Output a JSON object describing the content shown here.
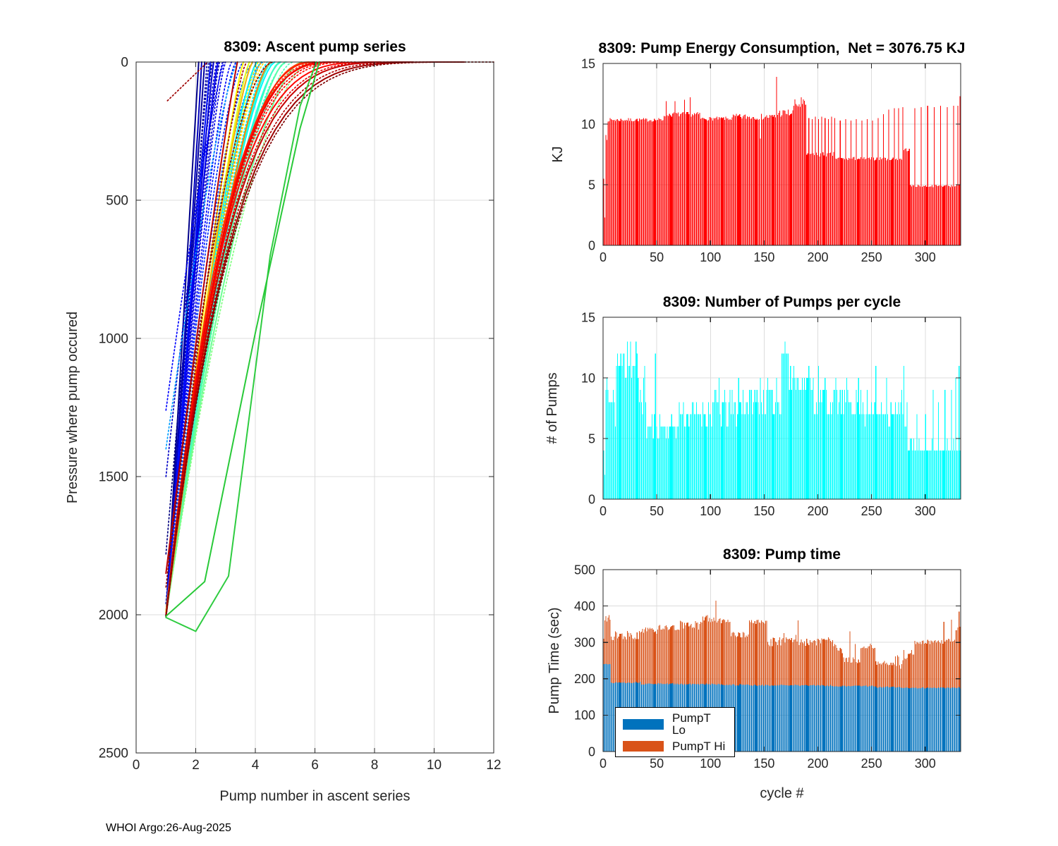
{
  "footer": {
    "text": "WHOI Argo:26-Aug-2025"
  },
  "colors": {
    "energy_bar": "#ff0000",
    "pumps_bar": "#00ffff",
    "pump_lo": "#0072BD",
    "pump_hi": "#D95319",
    "axis": "#262626",
    "grid": "#dcdcdc",
    "title": "#000000"
  },
  "chart_data": [
    {
      "id": "ascent_pump_series",
      "type": "line",
      "title": "8309: Ascent pump series",
      "xlabel": "Pump number in ascent series",
      "ylabel": "Pressure where pump occured",
      "xlim": [
        0,
        12
      ],
      "ylim": [
        0,
        2500
      ],
      "y_reversed": true,
      "xticks": [
        0,
        2,
        4,
        6,
        8,
        10,
        12
      ],
      "yticks": [
        0,
        500,
        1000,
        1500,
        2000,
        2500
      ],
      "grid": true,
      "colormap": "jet",
      "lines_format": "[jet_fraction, dotted01, x_start, pressure_start_dbar, x_at_surface, curvature_gamma]",
      "lines": [
        [
          0.0,
          1,
          1,
          1780,
          2.55,
          1.1
        ],
        [
          0.01,
          0,
          1,
          2005,
          2.1,
          1.0
        ],
        [
          0.02,
          1,
          1,
          2005,
          2.45,
          1.1
        ],
        [
          0.03,
          0,
          1,
          2005,
          2.3,
          1.0
        ],
        [
          0.04,
          1,
          1,
          1960,
          2.8,
          1.2
        ],
        [
          0.05,
          1,
          1,
          2005,
          2.38,
          1.0
        ],
        [
          0.06,
          0,
          1,
          2005,
          2.2,
          0.95
        ],
        [
          0.07,
          1,
          1,
          1500,
          2.7,
          1.1
        ],
        [
          0.08,
          0,
          1,
          2005,
          2.6,
          1.1
        ],
        [
          0.09,
          1,
          1,
          2010,
          2.9,
          1.25
        ],
        [
          0.1,
          1,
          1,
          2005,
          3.0,
          1.3
        ],
        [
          0.11,
          0,
          1,
          2005,
          2.75,
          1.2
        ],
        [
          0.12,
          1,
          1,
          1990,
          3.2,
          1.35
        ],
        [
          0.13,
          1,
          1,
          1260,
          2.95,
          1.2
        ],
        [
          0.14,
          0,
          1,
          2005,
          2.5,
          1.05
        ],
        [
          0.15,
          1,
          1,
          2005,
          3.35,
          1.4
        ],
        [
          0.17,
          1,
          1,
          2005,
          3.6,
          1.5
        ],
        [
          0.2,
          1,
          1,
          2005,
          3.95,
          1.6
        ],
        [
          0.24,
          1,
          1,
          2005,
          4.25,
          1.65
        ],
        [
          0.28,
          1,
          1,
          1400,
          3.4,
          1.3
        ],
        [
          0.32,
          0,
          1,
          2005,
          3.9,
          1.3
        ],
        [
          0.34,
          0,
          1,
          2005,
          4.2,
          1.4
        ],
        [
          0.35,
          1,
          1,
          2005,
          4.5,
          1.5
        ],
        [
          0.36,
          0,
          1,
          2005,
          4.05,
          1.35
        ],
        [
          0.37,
          0,
          1,
          2005,
          4.65,
          1.5
        ],
        [
          0.38,
          1,
          1,
          2005,
          4.4,
          1.4
        ],
        [
          0.4,
          0,
          1,
          2005,
          4.85,
          1.55
        ],
        [
          0.41,
          1,
          1,
          2005,
          5.05,
          1.6
        ],
        [
          0.42,
          0,
          1,
          2005,
          4.55,
          1.45
        ],
        [
          0.44,
          0,
          1,
          2005,
          4.8,
          1.45
        ],
        [
          0.45,
          1,
          1,
          2005,
          5.25,
          1.6
        ],
        [
          0.46,
          0,
          1,
          2005,
          5.0,
          1.5
        ],
        [
          0.48,
          0,
          1,
          2005,
          5.55,
          1.65
        ],
        [
          0.5,
          1,
          1,
          2005,
          5.85,
          1.7
        ],
        [
          0.6,
          0,
          1,
          2005,
          3.8,
          1.25
        ],
        [
          0.62,
          1,
          1,
          2005,
          4.1,
          1.35
        ],
        [
          0.63,
          0,
          1,
          1990,
          3.6,
          1.2
        ],
        [
          0.65,
          1,
          1,
          2005,
          4.3,
          1.4
        ],
        [
          0.7,
          0,
          1,
          2005,
          3.9,
          1.3
        ],
        [
          0.72,
          1,
          1,
          2005,
          4.2,
          1.35
        ],
        [
          0.75,
          0,
          1,
          2005,
          4.5,
          1.45
        ],
        [
          0.8,
          0,
          1,
          2005,
          5.8,
          2.2
        ],
        [
          0.82,
          1,
          1,
          2005,
          6.3,
          2.6
        ],
        [
          0.84,
          0,
          1,
          2005,
          6.8,
          3.0
        ],
        [
          0.85,
          0,
          1,
          2005,
          6.0,
          2.4
        ],
        [
          0.86,
          1,
          1,
          2005,
          7.4,
          3.2
        ],
        [
          0.87,
          0,
          1,
          2005,
          8.2,
          3.6
        ],
        [
          0.88,
          1,
          1,
          2005,
          7.0,
          3.0
        ],
        [
          0.89,
          0,
          1,
          2005,
          6.5,
          2.7
        ],
        [
          0.9,
          1,
          1,
          2005,
          8.8,
          3.8
        ],
        [
          0.93,
          0,
          1,
          2005,
          9.3,
          4.0
        ],
        [
          0.94,
          0,
          1,
          1850,
          3.4,
          1.1
        ],
        [
          0.95,
          1,
          1,
          2005,
          10.2,
          4.3
        ],
        [
          0.96,
          1,
          1,
          2005,
          3.7,
          1.3
        ],
        [
          0.97,
          1,
          1.05,
          140,
          2.4,
          1.0
        ],
        [
          0.97,
          0,
          1,
          2005,
          11.0,
          4.6
        ],
        [
          0.99,
          1,
          1,
          1900,
          4.6,
          1.8
        ],
        [
          1.0,
          1,
          1,
          2005,
          12.0,
          5.0
        ]
      ],
      "extra_lines": [
        {
          "color": "#2ecc40",
          "dotted": 0,
          "pts": [
            [
              1,
              2010
            ],
            [
              2,
              2060
            ],
            [
              3.1,
              1860
            ],
            [
              4.5,
              700
            ],
            [
              5.5,
              160
            ],
            [
              6.05,
              0
            ]
          ]
        },
        {
          "color": "#28c938",
          "dotted": 0,
          "pts": [
            [
              1,
              2005
            ],
            [
              2.3,
              1880
            ],
            [
              4.0,
              980
            ],
            [
              5.5,
              240
            ],
            [
              6.15,
              0
            ]
          ]
        }
      ]
    },
    {
      "id": "pump_energy",
      "type": "bar",
      "title": "8309: Pump Energy Consumption,  Net = 3076.75 KJ",
      "net_kj": 3076.75,
      "ylabel": "KJ",
      "xlim": [
        0,
        333
      ],
      "ylim": [
        0,
        15
      ],
      "xticks": [
        0,
        50,
        100,
        150,
        200,
        250,
        300
      ],
      "yticks": [
        0,
        5,
        10,
        15
      ],
      "grid": true,
      "n_cycles": 331,
      "bar_color_key": "energy_bar",
      "head": [
        5.5,
        2.3,
        9.1,
        8.7
      ],
      "segments_format": "[from_cycle, to_cycle, base_KJ, jitter]",
      "segments": [
        [
          4,
          56,
          10.35,
          0.15
        ],
        [
          56,
          90,
          10.8,
          0.2
        ],
        [
          90,
          120,
          10.45,
          0.15
        ],
        [
          120,
          160,
          10.6,
          0.25
        ],
        [
          160,
          176,
          10.9,
          0.35
        ],
        [
          176,
          188,
          11.6,
          0.45
        ],
        [
          188,
          215,
          7.5,
          0.2
        ],
        [
          215,
          278,
          7.15,
          0.15
        ],
        [
          278,
          284,
          7.9,
          0.15
        ],
        [
          284,
          331,
          4.9,
          0.1
        ]
      ],
      "spikes": [
        [
          58,
          11.9
        ],
        [
          66,
          11.9
        ],
        [
          75,
          12.0
        ],
        [
          80,
          12.2
        ],
        [
          145,
          8.8
        ],
        [
          160,
          13.9
        ],
        [
          183,
          12.2
        ],
        [
          190,
          10.5
        ],
        [
          193,
          10.4
        ],
        [
          196,
          10.6
        ],
        [
          199,
          10.4
        ],
        [
          202,
          10.6
        ],
        [
          205,
          10.5
        ],
        [
          208,
          10.4
        ],
        [
          211,
          10.6
        ],
        [
          214,
          10.5
        ],
        [
          219,
          10.3
        ],
        [
          224,
          10.4
        ],
        [
          229,
          10.3
        ],
        [
          234,
          10.4
        ],
        [
          239,
          10.3
        ],
        [
          244,
          10.4
        ],
        [
          249,
          10.3
        ],
        [
          254,
          10.5
        ],
        [
          259,
          10.8
        ],
        [
          264,
          11.2
        ],
        [
          269,
          11.3
        ],
        [
          273,
          11.3
        ],
        [
          277,
          11.4
        ],
        [
          288,
          11.3
        ],
        [
          294,
          11.4
        ],
        [
          300,
          11.5
        ],
        [
          306,
          11.4
        ],
        [
          312,
          11.5
        ],
        [
          318,
          11.4
        ],
        [
          324,
          11.5
        ],
        [
          328,
          11.5
        ],
        [
          330,
          12.3
        ]
      ]
    },
    {
      "id": "pumps_per_cycle",
      "type": "bar",
      "title": "8309: Number of Pumps per cycle",
      "ylabel": "# of Pumps",
      "xlim": [
        0,
        333
      ],
      "ylim": [
        0,
        15
      ],
      "xticks": [
        0,
        50,
        100,
        150,
        200,
        250,
        300
      ],
      "yticks": [
        0,
        5,
        10,
        15
      ],
      "grid": true,
      "n_cycles": 331,
      "integer": true,
      "bar_color_key": "pumps_bar",
      "head": [
        4,
        2,
        9,
        10,
        9
      ],
      "segments_format": "[from_cycle, to_cycle, base_count, jitter]",
      "segments": [
        [
          5,
          12,
          8,
          2
        ],
        [
          12,
          32,
          11,
          2
        ],
        [
          32,
          40,
          9,
          2
        ],
        [
          40,
          70,
          6,
          0.8
        ],
        [
          70,
          100,
          7,
          1.2
        ],
        [
          100,
          125,
          7.5,
          1.5
        ],
        [
          125,
          165,
          8,
          1.5
        ],
        [
          165,
          172,
          12,
          1
        ],
        [
          172,
          195,
          9.7,
          1
        ],
        [
          195,
          220,
          8,
          1.5
        ],
        [
          220,
          240,
          7.8,
          1
        ],
        [
          240,
          275,
          7.2,
          0.9
        ],
        [
          275,
          282,
          7.5,
          1.5
        ],
        [
          282,
          331,
          4.2,
          0.45
        ]
      ],
      "spikes": [
        [
          13,
          12
        ],
        [
          22,
          13
        ],
        [
          25,
          13
        ],
        [
          30,
          13
        ],
        [
          48,
          12
        ],
        [
          107,
          10
        ],
        [
          125,
          10
        ],
        [
          137,
          9
        ],
        [
          145,
          10
        ],
        [
          152,
          10
        ],
        [
          160,
          10
        ],
        [
          168,
          13
        ],
        [
          170,
          12
        ],
        [
          176,
          11
        ],
        [
          186,
          10
        ],
        [
          190,
          11
        ],
        [
          199,
          11
        ],
        [
          205,
          10
        ],
        [
          215,
          10
        ],
        [
          225,
          10
        ],
        [
          236,
          10
        ],
        [
          244,
          9
        ],
        [
          252,
          11
        ],
        [
          262,
          10
        ],
        [
          278,
          11
        ],
        [
          290,
          7
        ],
        [
          298,
          7
        ],
        [
          305,
          9
        ],
        [
          310,
          8
        ],
        [
          316,
          9
        ],
        [
          322,
          9
        ],
        [
          326,
          10
        ],
        [
          329,
          11
        ]
      ]
    },
    {
      "id": "pump_time",
      "type": "stacked_bar",
      "title": "8309: Pump time",
      "xlabel": "cycle #",
      "ylabel": "Pump Time (sec)",
      "xlim": [
        0,
        333
      ],
      "ylim": [
        0,
        500
      ],
      "xticks": [
        0,
        50,
        100,
        150,
        200,
        250,
        300
      ],
      "yticks": [
        0,
        100,
        200,
        300,
        400,
        500
      ],
      "grid": true,
      "n_cycles": 331,
      "series": [
        {
          "name": "PumpT Lo",
          "color_key": "pump_lo"
        },
        {
          "name": "PumpT Hi",
          "color_key": "pump_hi"
        }
      ],
      "head_pairs": [
        [
          240,
          310
        ],
        [
          240,
          360
        ],
        [
          241,
          372
        ],
        [
          240,
          358
        ],
        [
          239,
          368
        ],
        [
          240,
          375
        ],
        [
          240,
          362
        ]
      ],
      "segments_format": "[from_cycle, to_cycle, lo_sec, total_sec, jitter]",
      "segments": [
        [
          7,
          35,
          190,
          320,
          14
        ],
        [
          35,
          50,
          186,
          332,
          10
        ],
        [
          50,
          70,
          186,
          341,
          8
        ],
        [
          70,
          90,
          185,
          346,
          14
        ],
        [
          90,
          105,
          185,
          364,
          10
        ],
        [
          105,
          118,
          184,
          360,
          8
        ],
        [
          118,
          135,
          183,
          321,
          8
        ],
        [
          135,
          152,
          182,
          357,
          6
        ],
        [
          152,
          165,
          182,
          302,
          14
        ],
        [
          165,
          180,
          182,
          312,
          14
        ],
        [
          180,
          200,
          182,
          301,
          10
        ],
        [
          200,
          213,
          181,
          306,
          10
        ],
        [
          213,
          222,
          180,
          282,
          14
        ],
        [
          222,
          238,
          180,
          251,
          8
        ],
        [
          238,
          252,
          180,
          291,
          10
        ],
        [
          252,
          270,
          177,
          243,
          6
        ],
        [
          270,
          278,
          176,
          250,
          16
        ],
        [
          278,
          288,
          175,
          266,
          14
        ],
        [
          288,
          312,
          175,
          301,
          6
        ],
        [
          312,
          326,
          175,
          305,
          9
        ],
        [
          326,
          331,
          175,
          338,
          8
        ]
      ],
      "spikes": [
        [
          96,
          375
        ],
        [
          104,
          415
        ],
        [
          180,
          360
        ],
        [
          228,
          330
        ],
        [
          233,
          296
        ],
        [
          275,
          228
        ],
        [
          315,
          357
        ],
        [
          322,
          362
        ],
        [
          329,
          385
        ]
      ]
    }
  ]
}
